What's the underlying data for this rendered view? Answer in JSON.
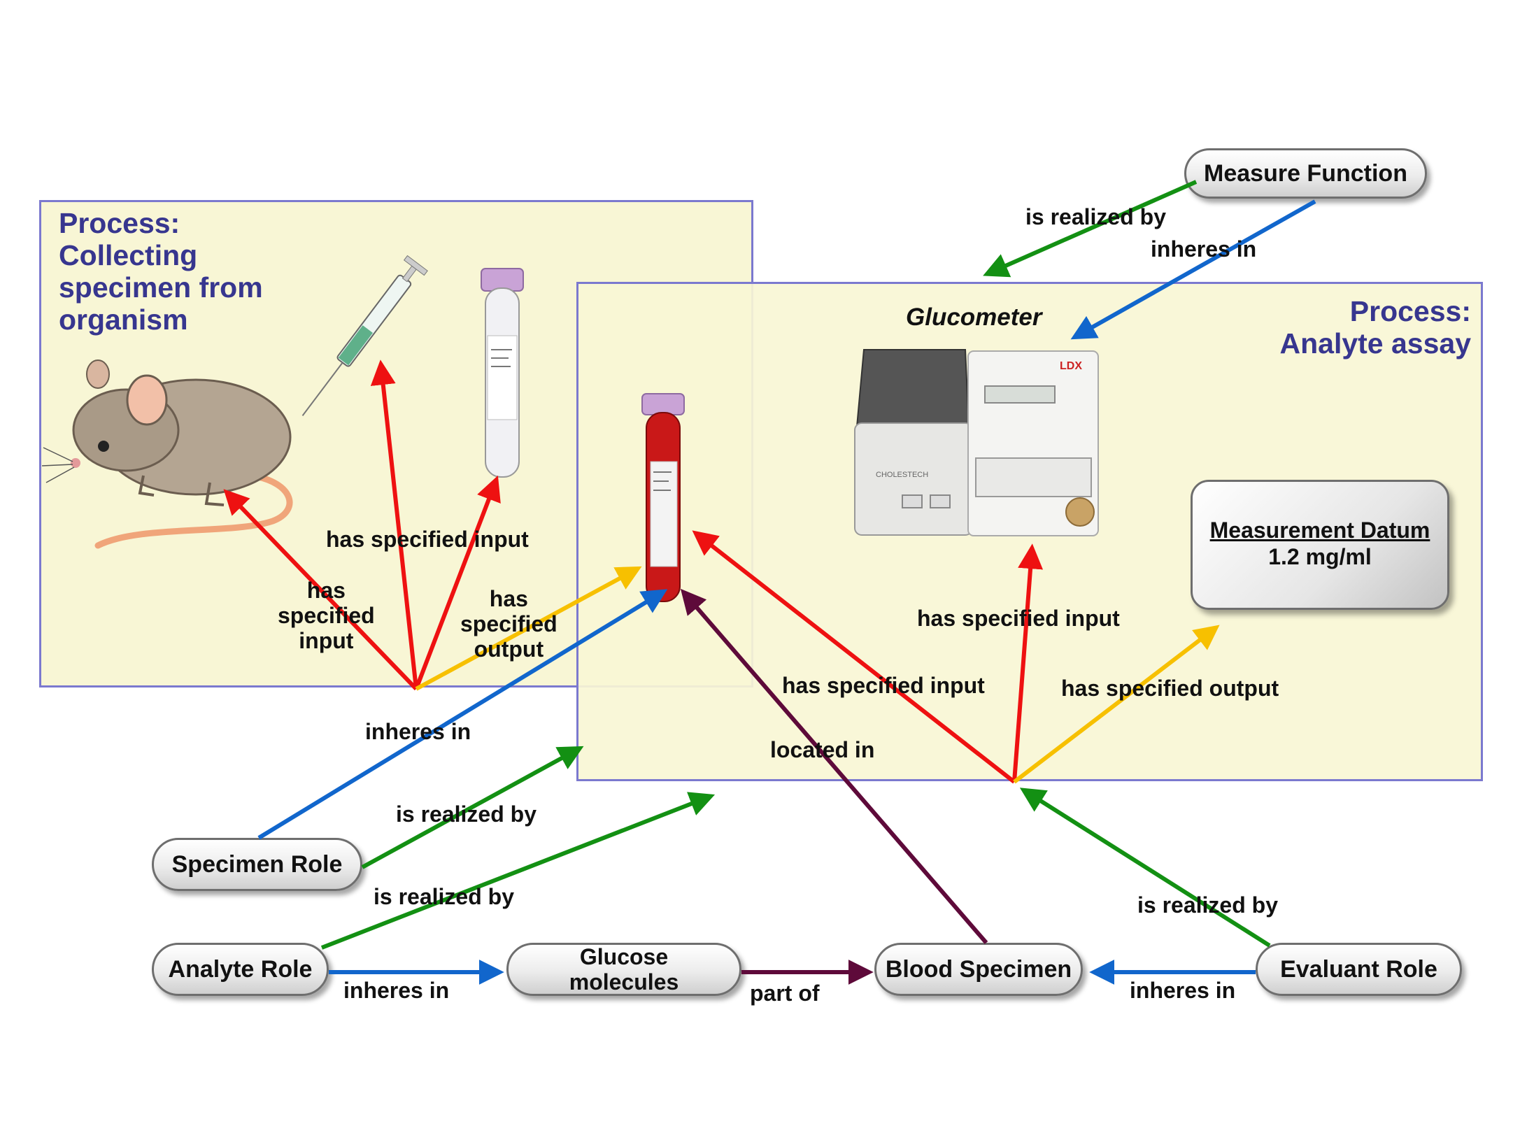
{
  "processes": {
    "collect_title": "Process:\nCollecting\nspecimen from\norganism",
    "assay_title": "Process:\nAnalyte assay"
  },
  "nodes": {
    "measure_function": "Measure Function",
    "specimen_role": "Specimen Role",
    "analyte_role": "Analyte Role",
    "glucose_molecules": "Glucose\nmolecules",
    "blood_specimen": "Blood Specimen",
    "evaluant_role": "Evaluant Role",
    "measurement_datum_title": "Measurement Datum",
    "measurement_datum_value": "1.2 mg/ml"
  },
  "device": {
    "glucometer_label": "Glucometer",
    "brand_text": "LDX",
    "model_text": "CHOLESTECH"
  },
  "labels": {
    "mf_realized": "is realized by",
    "mf_inheres": "inheres in",
    "collect_input_mouse": "has\nspecified\ninput",
    "collect_input_tools": "has specified input",
    "collect_output": "has\nspecified\noutput",
    "specimen_inheres": "inheres in",
    "located_in": "located in",
    "assay_input_tube": "has specified input",
    "assay_input_device": "has specified input",
    "assay_output": "has specified output",
    "specimen_realized": "is realized by",
    "analyte_realized": "is realized by",
    "evaluant_realized": "is realized by",
    "analyte_inheres": "inheres in",
    "part_of": "part of",
    "evaluant_inheres": "inheres in"
  },
  "colors": {
    "has_specified_input": "#ee1111",
    "has_specified_output": "#f7c000",
    "inheres_in": "#1166cc",
    "is_realized_by": "#139013",
    "located_part_of": "#5e0a3a",
    "process_fill": "#f8f6d5",
    "process_border": "#7b79cf",
    "process_title": "#37368f"
  },
  "icons": [
    "mouse-icon",
    "syringe-icon",
    "empty-tube-icon",
    "blood-tube-icon",
    "glucometer-icon"
  ]
}
